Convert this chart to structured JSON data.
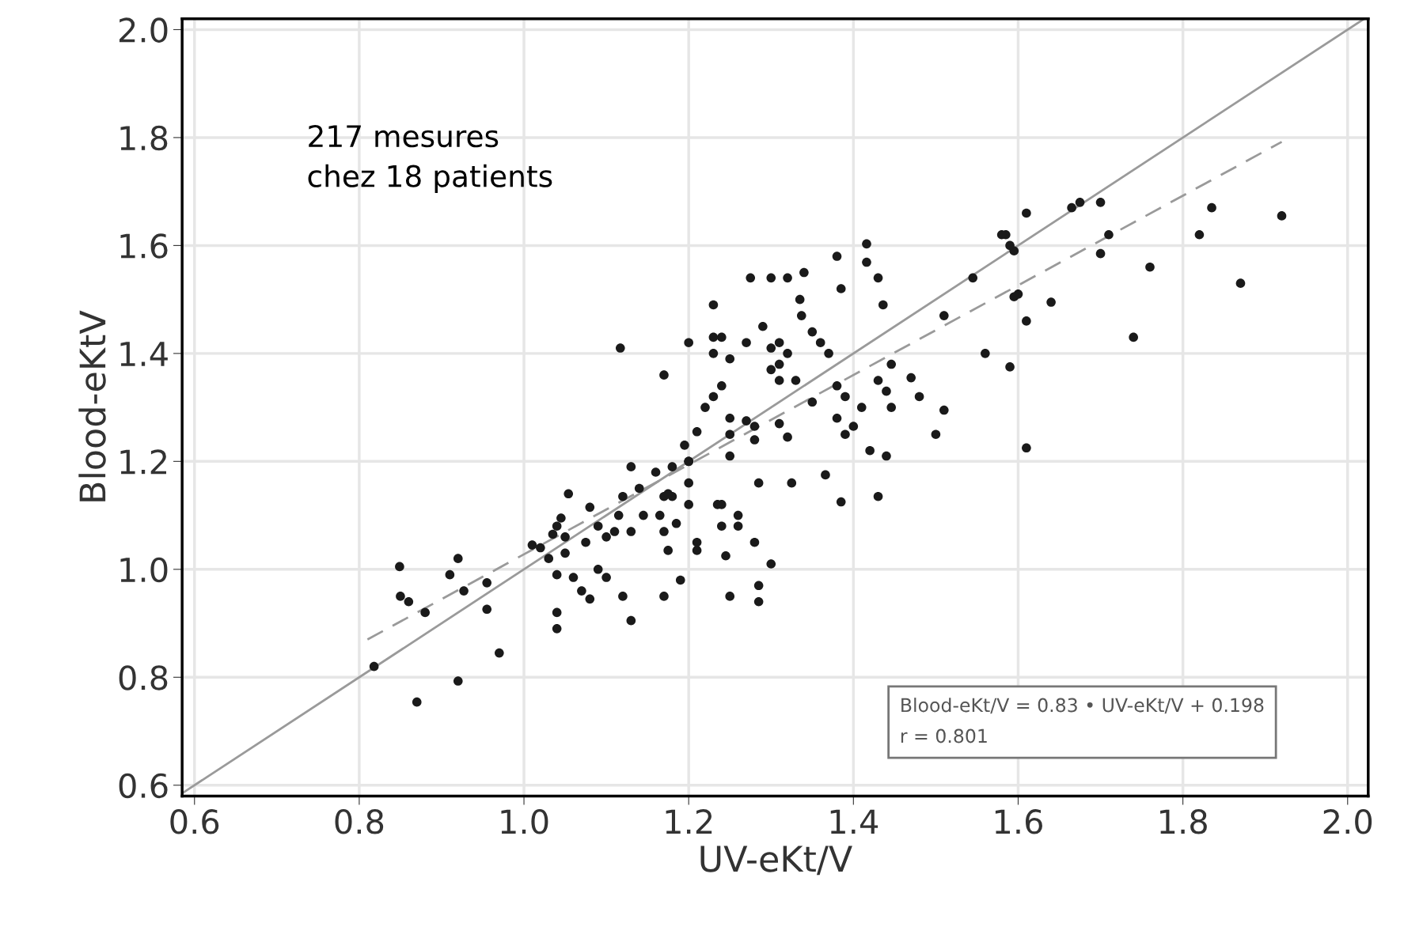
{
  "chart_data": {
    "type": "scatter",
    "xlabel": "UV-eKt/V",
    "ylabel": "Blood-eKtV",
    "xlim": [
      0.585,
      2.025
    ],
    "ylim": [
      0.58,
      2.02
    ],
    "xticks": [
      0.6,
      0.8,
      {
        "value": 1.0,
        "label": "1.0"
      },
      1.2,
      1.4,
      1.6,
      1.8,
      {
        "value": 2.0,
        "label": "2.0"
      }
    ],
    "yticks": [
      0.6,
      0.8,
      {
        "value": 1.0,
        "label": "1.0"
      },
      1.2,
      1.4,
      1.6,
      1.8,
      {
        "value": 2.0,
        "label": "2.0"
      }
    ],
    "grid": true,
    "annotations": [
      "217 mesures\nchez 18 patients",
      "Blood-eKt/V = 0.83 • UV-eKt/V + 0.198\nr = 0.801"
    ],
    "series": [
      {
        "color": "#1a1a1a",
        "marker": "circle",
        "x": [
          0.849,
          0.92,
          0.91,
          0.86,
          0.85,
          0.88,
          0.927,
          0.955,
          0.955,
          0.818,
          0.97,
          0.92,
          0.87,
          1.054,
          1.08,
          1.02,
          1.03,
          1.04,
          1.05,
          1.05,
          1.075,
          1.09,
          1.04,
          1.06,
          1.07,
          1.08,
          1.09,
          1.1,
          1.12,
          1.17,
          1.19,
          1.04,
          1.04,
          1.13,
          1.13,
          1.16,
          1.18,
          1.2,
          1.12,
          1.14,
          1.145,
          1.165,
          1.17,
          1.18,
          1.11,
          1.13,
          1.2,
          1.2,
          1.185,
          1.17,
          1.175,
          1.21,
          1.21,
          1.245,
          1.24,
          1.24,
          1.26,
          1.26,
          1.28,
          1.3,
          1.285,
          1.285,
          1.25,
          1.035,
          1.01,
          1.045,
          1.1,
          1.115,
          1.416,
          1.416,
          1.43,
          1.38,
          1.385,
          1.436,
          1.275,
          1.3,
          1.32,
          1.34,
          1.335,
          1.337,
          1.23,
          1.29,
          1.24,
          1.23,
          1.27,
          1.25,
          1.2,
          1.117,
          1.23,
          1.31,
          1.3,
          1.32,
          1.31,
          1.3,
          1.31,
          1.33,
          1.35,
          1.36,
          1.37,
          1.17,
          1.446,
          1.47,
          1.43,
          1.44,
          1.48,
          1.446,
          1.51,
          1.5,
          1.56,
          1.59,
          1.545,
          1.51,
          1.585,
          1.595,
          1.6,
          1.61,
          1.61,
          1.24,
          1.23,
          1.22,
          1.25,
          1.27,
          1.28,
          1.25,
          1.28,
          1.21,
          1.195,
          1.2,
          1.25,
          1.31,
          1.32,
          1.35,
          1.38,
          1.39,
          1.38,
          1.39,
          1.4,
          1.41,
          1.42,
          1.44,
          1.175,
          1.285,
          1.325,
          1.366,
          1.385,
          1.43,
          1.235,
          1.61,
          1.58,
          1.59,
          1.665,
          1.675,
          1.7,
          1.71,
          1.7,
          1.835,
          1.82,
          1.92,
          1.76,
          1.87,
          1.74,
          1.595,
          1.64
        ],
        "values": [
          1.005,
          1.02,
          0.99,
          0.94,
          0.95,
          0.92,
          0.96,
          0.975,
          0.926,
          0.82,
          0.845,
          0.793,
          0.754,
          1.14,
          1.115,
          1.04,
          1.02,
          1.08,
          1.06,
          1.03,
          1.05,
          1.08,
          0.99,
          0.985,
          0.96,
          0.945,
          1.0,
          0.985,
          0.95,
          0.95,
          0.98,
          0.92,
          0.89,
          0.905,
          1.19,
          1.18,
          1.19,
          1.2,
          1.135,
          1.15,
          1.1,
          1.1,
          1.135,
          1.135,
          1.07,
          1.07,
          1.16,
          1.12,
          1.085,
          1.07,
          1.035,
          1.05,
          1.035,
          1.025,
          1.12,
          1.08,
          1.1,
          1.08,
          1.05,
          1.01,
          0.97,
          0.94,
          0.95,
          1.065,
          1.045,
          1.095,
          1.06,
          1.1,
          1.603,
          1.569,
          1.54,
          1.58,
          1.52,
          1.49,
          1.54,
          1.54,
          1.54,
          1.55,
          1.5,
          1.47,
          1.49,
          1.45,
          1.43,
          1.43,
          1.42,
          1.39,
          1.42,
          1.41,
          1.4,
          1.42,
          1.41,
          1.4,
          1.38,
          1.37,
          1.35,
          1.35,
          1.44,
          1.42,
          1.4,
          1.36,
          1.38,
          1.355,
          1.35,
          1.33,
          1.32,
          1.3,
          1.295,
          1.25,
          1.4,
          1.375,
          1.54,
          1.47,
          1.62,
          1.59,
          1.51,
          1.46,
          1.225,
          1.34,
          1.32,
          1.3,
          1.28,
          1.275,
          1.265,
          1.25,
          1.24,
          1.255,
          1.23,
          1.2,
          1.21,
          1.27,
          1.245,
          1.31,
          1.34,
          1.32,
          1.28,
          1.25,
          1.265,
          1.3,
          1.22,
          1.21,
          1.14,
          1.16,
          1.16,
          1.175,
          1.125,
          1.135,
          1.12,
          1.66,
          1.62,
          1.6,
          1.67,
          1.68,
          1.68,
          1.62,
          1.585,
          1.67,
          1.62,
          1.655,
          1.56,
          1.53,
          1.43,
          1.505,
          1.495
        ]
      },
      {
        "type": "line",
        "color": "#9a9a9a",
        "marker": "none",
        "line_style": "solid",
        "x": [
          0.585,
          2.02
        ],
        "values": [
          0.585,
          2.02
        ]
      },
      {
        "type": "line",
        "color": "#9a9a9a",
        "marker": "none",
        "line_style": "dashed",
        "x": [
          0.81,
          1.92
        ],
        "values": [
          0.87,
          1.792
        ]
      }
    ]
  }
}
